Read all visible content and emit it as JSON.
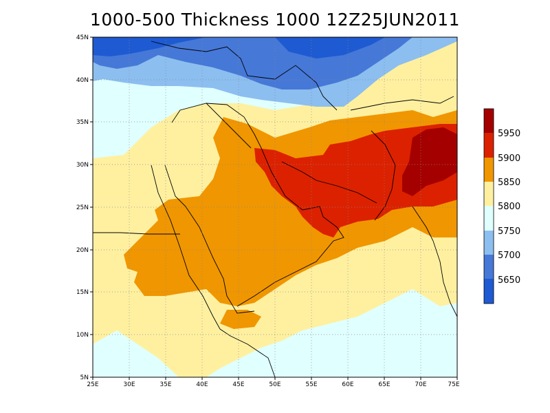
{
  "title": "1000-500 Thickness 1000 12Z25JUN2011",
  "map": {
    "lat_ticks": [
      "45N",
      "40N",
      "35N",
      "30N",
      "25N",
      "20N",
      "15N",
      "10N",
      "5N"
    ],
    "lon_ticks": [
      "25E",
      "30E",
      "35E",
      "40E",
      "45E",
      "50E",
      "55E",
      "60E",
      "65E",
      "70E",
      "75E"
    ],
    "lat_range": [
      5,
      45
    ],
    "lon_range": [
      25,
      75
    ],
    "grid": "dotted"
  },
  "legend": {
    "labels": [
      "5950",
      "5900",
      "5850",
      "5800",
      "5750",
      "5700",
      "5650"
    ],
    "colors": [
      "#a50000",
      "#dc2100",
      "#f09600",
      "#fff0a0",
      "#e0ffff",
      "#8cbef0",
      "#4678d7",
      "#1e5ad2"
    ],
    "orientation": "vertical",
    "placement": "right"
  }
}
